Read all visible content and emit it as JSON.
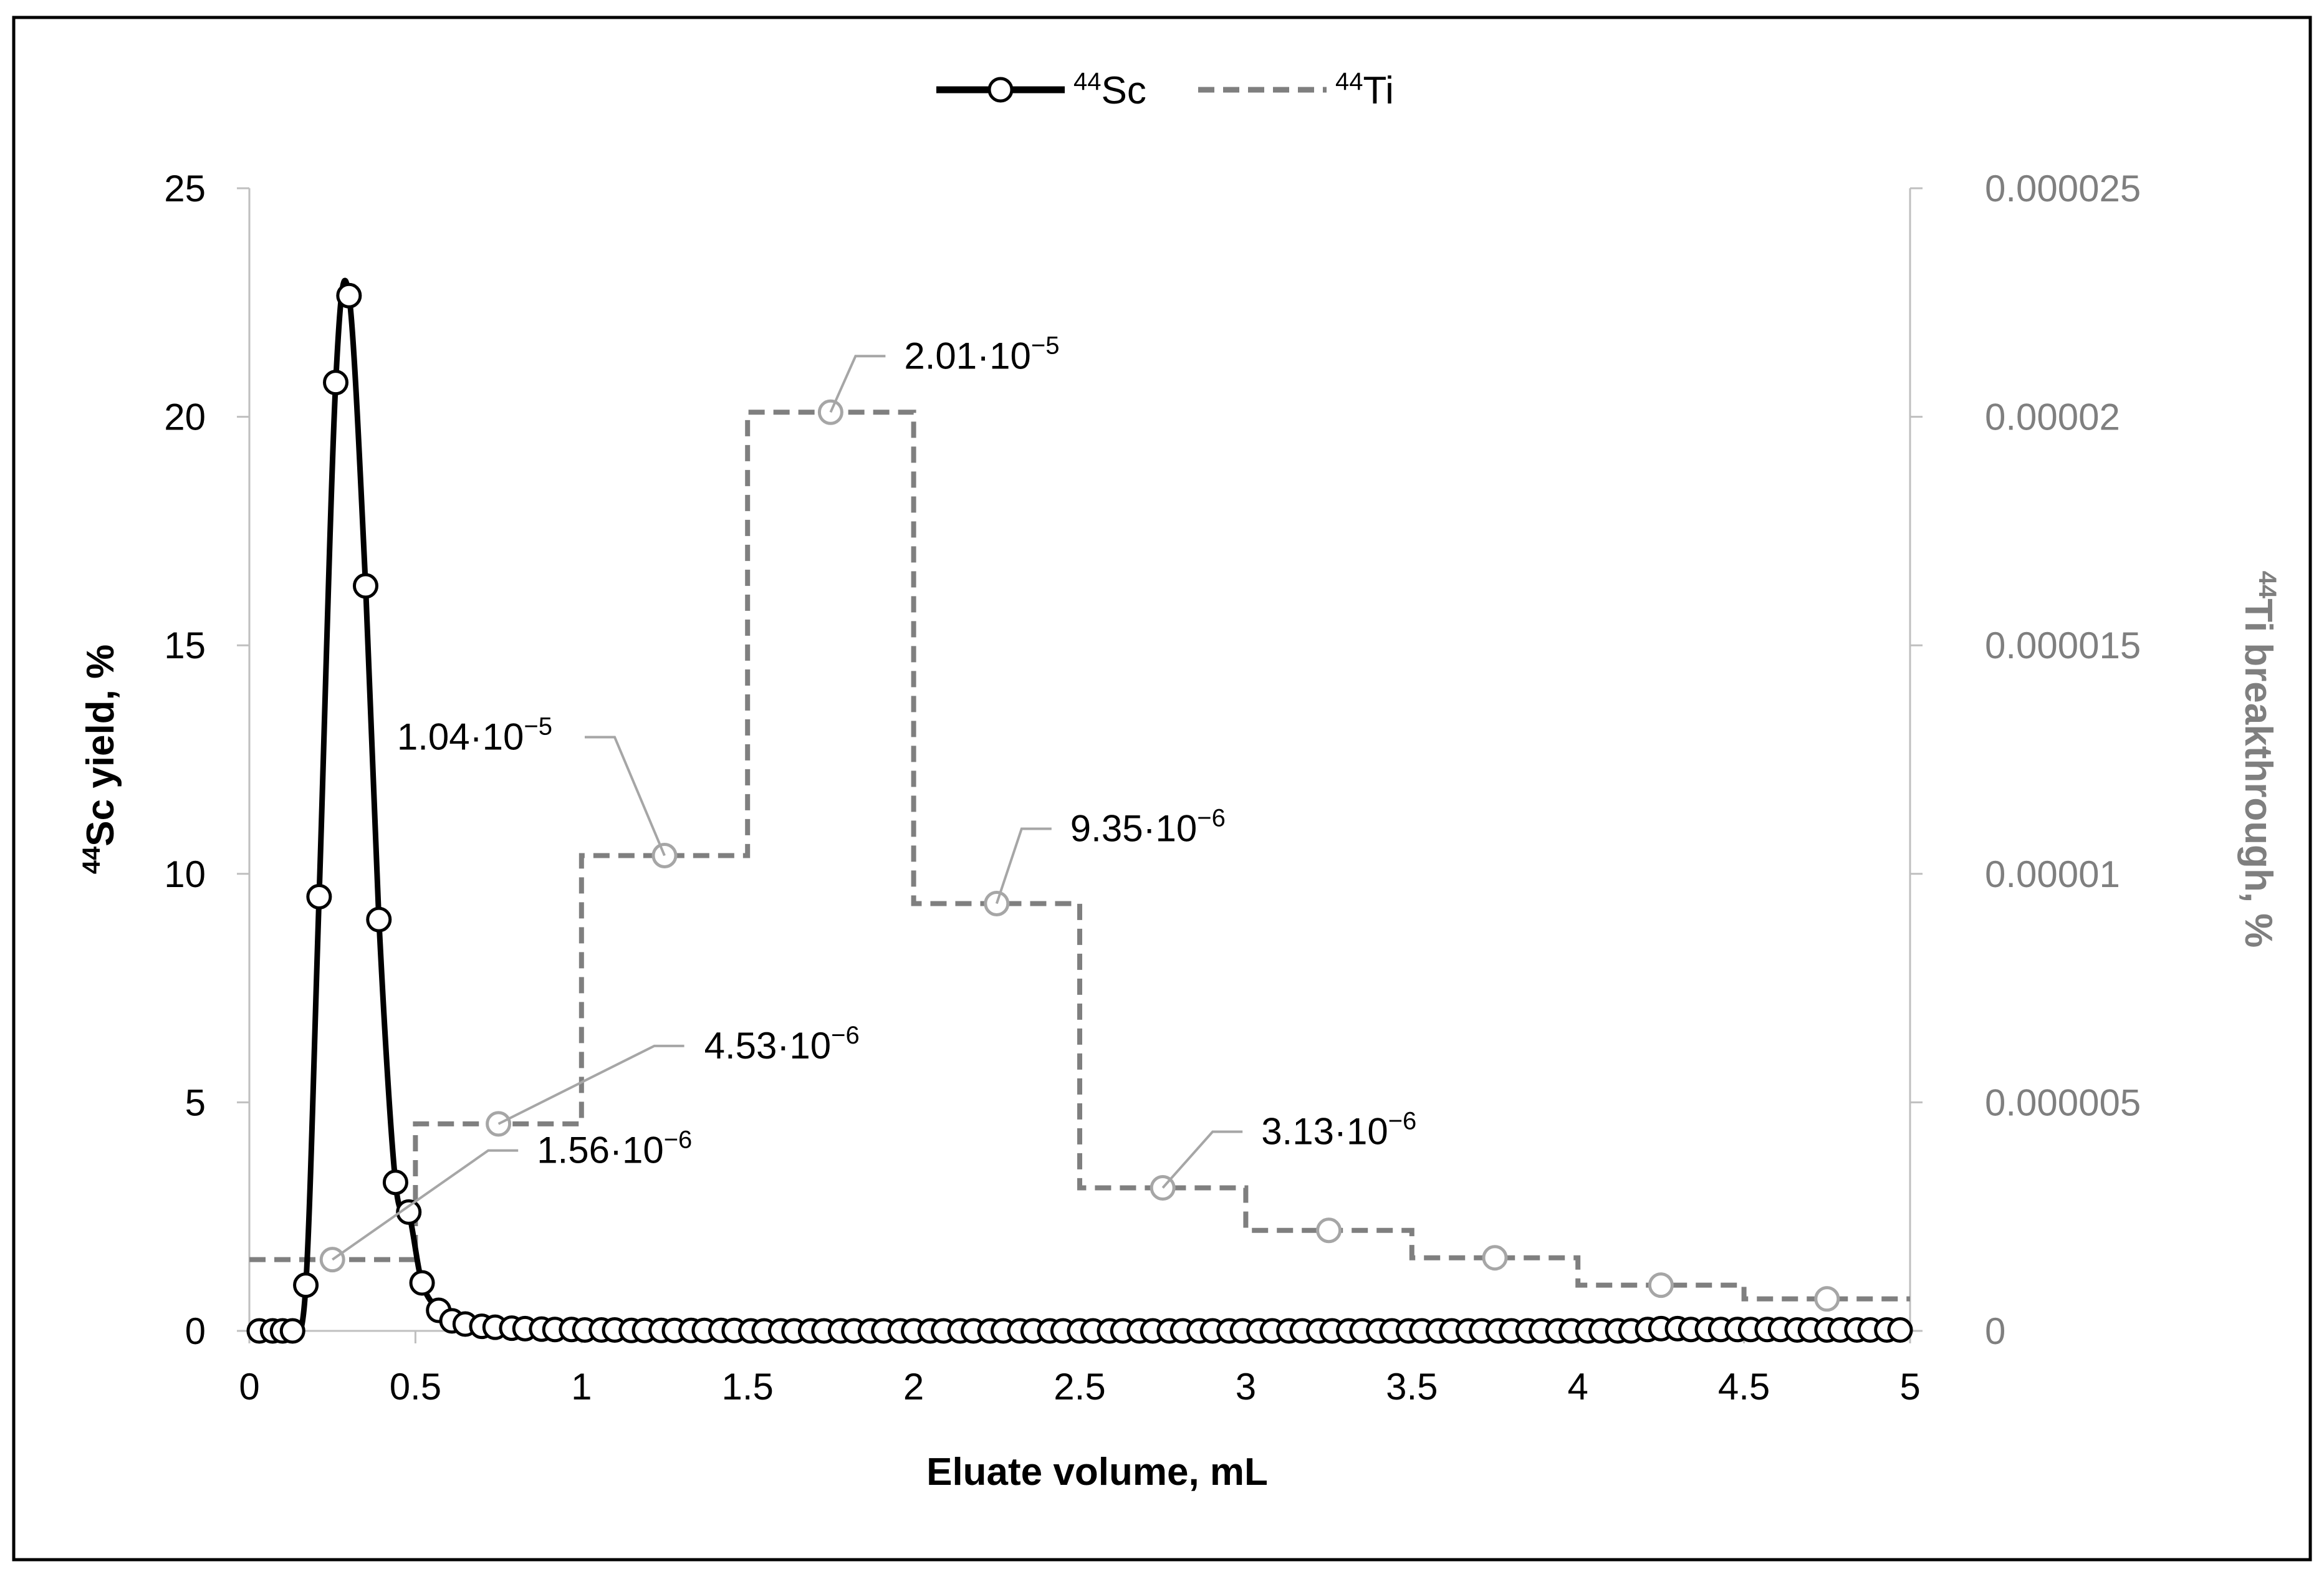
{
  "chart_data": {
    "type": "line",
    "xlabel": "Eluate volume, mL",
    "ylabel_left": {
      "sup": "44",
      "text": "Sc yield, %"
    },
    "ylabel_right": {
      "sup": "44",
      "text": "Ti breakthrough, %"
    },
    "xlim": [
      0,
      5
    ],
    "ylim_left": [
      0,
      25
    ],
    "ylim_right": [
      0,
      2.5e-05
    ],
    "x_ticks": [
      "0",
      "0.5",
      "1",
      "1.5",
      "2",
      "2.5",
      "3",
      "3.5",
      "4",
      "4.5",
      "5"
    ],
    "y_left_ticks": [
      "0",
      "5",
      "10",
      "15",
      "20",
      "25"
    ],
    "y_right_ticks": [
      "0",
      "0.000005",
      "0.00001",
      "0.000015",
      "0.00002",
      "0.000025"
    ],
    "legend_position": "top-center",
    "grid": false,
    "colors": {
      "sc": "#000000",
      "ti": "#7f7f7f",
      "axis": "#bfbfbf",
      "leader": "#a6a6a6"
    },
    "series": [
      {
        "name": "44Sc",
        "legend": {
          "sup": "44",
          "text": "Sc"
        },
        "axis": "left",
        "style": "solid-with-open-circles",
        "points": [
          [
            0.03,
            0
          ],
          [
            0.07,
            0
          ],
          [
            0.1,
            0
          ],
          [
            0.13,
            0
          ],
          [
            0.17,
            1.0
          ],
          [
            0.21,
            9.5
          ],
          [
            0.26,
            20.75
          ],
          [
            0.3,
            22.65
          ],
          [
            0.35,
            16.3
          ],
          [
            0.39,
            9.0
          ],
          [
            0.44,
            3.25
          ],
          [
            0.48,
            2.6
          ],
          [
            0.52,
            1.05
          ],
          [
            0.57,
            0.45
          ],
          [
            0.61,
            0.22
          ],
          [
            0.65,
            0.15
          ],
          [
            0.7,
            0.1
          ],
          [
            0.74,
            0.08
          ],
          [
            0.79,
            0.06
          ],
          [
            0.83,
            0.05
          ],
          [
            0.88,
            0.04
          ],
          [
            0.92,
            0.03
          ],
          [
            0.97,
            0.03
          ],
          [
            1.01,
            0.02
          ],
          [
            1.06,
            0.02
          ],
          [
            1.1,
            0.02
          ],
          [
            1.15,
            0.01
          ],
          [
            1.19,
            0.01
          ],
          [
            1.24,
            0.01
          ],
          [
            1.28,
            0.01
          ],
          [
            1.33,
            0.01
          ],
          [
            1.37,
            0.01
          ],
          [
            1.42,
            0.01
          ],
          [
            1.46,
            0.01
          ],
          [
            1.51,
            0.0
          ],
          [
            1.55,
            0.0
          ],
          [
            1.6,
            0.0
          ],
          [
            1.64,
            0.0
          ],
          [
            1.69,
            0.0
          ],
          [
            1.73,
            0.0
          ],
          [
            1.78,
            0.0
          ],
          [
            1.82,
            0.0
          ],
          [
            1.87,
            0.0
          ],
          [
            1.91,
            0.0
          ],
          [
            1.96,
            0.0
          ],
          [
            2.0,
            0.0
          ],
          [
            2.05,
            0.0
          ],
          [
            2.09,
            0.0
          ],
          [
            2.14,
            0.0
          ],
          [
            2.18,
            0.0
          ],
          [
            2.23,
            0.0
          ],
          [
            2.27,
            0.0
          ],
          [
            2.32,
            0.0
          ],
          [
            2.36,
            0.0
          ],
          [
            2.41,
            0.0
          ],
          [
            2.45,
            0.0
          ],
          [
            2.5,
            0.0
          ],
          [
            2.54,
            0.0
          ],
          [
            2.59,
            0.0
          ],
          [
            2.63,
            0.0
          ],
          [
            2.68,
            0.0
          ],
          [
            2.72,
            0.0
          ],
          [
            2.77,
            0.0
          ],
          [
            2.81,
            0.0
          ],
          [
            2.86,
            0.0
          ],
          [
            2.9,
            0.0
          ],
          [
            2.95,
            0.0
          ],
          [
            2.99,
            0.0
          ],
          [
            3.04,
            0.0
          ],
          [
            3.08,
            0.0
          ],
          [
            3.13,
            0.0
          ],
          [
            3.17,
            0.0
          ],
          [
            3.22,
            0.0
          ],
          [
            3.26,
            0.0
          ],
          [
            3.31,
            0.0
          ],
          [
            3.35,
            0.0
          ],
          [
            3.4,
            0.0
          ],
          [
            3.44,
            0.0
          ],
          [
            3.49,
            0.0
          ],
          [
            3.53,
            0.0
          ],
          [
            3.58,
            0.0
          ],
          [
            3.62,
            0.0
          ],
          [
            3.67,
            0.0
          ],
          [
            3.71,
            0.0
          ],
          [
            3.76,
            0.0
          ],
          [
            3.8,
            0.0
          ],
          [
            3.85,
            0.0
          ],
          [
            3.89,
            0.0
          ],
          [
            3.94,
            0.0
          ],
          [
            3.98,
            0.0
          ],
          [
            4.03,
            0.0
          ],
          [
            4.07,
            0.0
          ],
          [
            4.12,
            0.0
          ],
          [
            4.16,
            0.0
          ],
          [
            4.21,
            0.03
          ],
          [
            4.25,
            0.05
          ],
          [
            4.3,
            0.05
          ],
          [
            4.34,
            0.03
          ],
          [
            4.39,
            0.03
          ],
          [
            4.43,
            0.03
          ],
          [
            4.48,
            0.03
          ],
          [
            4.52,
            0.03
          ],
          [
            4.57,
            0.03
          ],
          [
            4.61,
            0.03
          ],
          [
            4.66,
            0.02
          ],
          [
            4.7,
            0.02
          ],
          [
            4.75,
            0.02
          ],
          [
            4.79,
            0.02
          ],
          [
            4.84,
            0.02
          ],
          [
            4.88,
            0.02
          ],
          [
            4.93,
            0.02
          ],
          [
            4.97,
            0.02
          ]
        ]
      },
      {
        "name": "44Ti",
        "legend": {
          "sup": "44",
          "text": "Ti"
        },
        "axis": "right",
        "style": "dashed-step",
        "steps": [
          {
            "x0": 0,
            "x1": 0.5,
            "value": 1.56e-06
          },
          {
            "x0": 0.5,
            "x1": 1.0,
            "value": 4.53e-06
          },
          {
            "x0": 1.0,
            "x1": 1.5,
            "value": 1.04e-05
          },
          {
            "x0": 1.5,
            "x1": 2.0,
            "value": 2.01e-05
          },
          {
            "x0": 2.0,
            "x1": 2.5,
            "value": 9.35e-06
          },
          {
            "x0": 2.5,
            "x1": 3.0,
            "value": 3.13e-06
          },
          {
            "x0": 3.0,
            "x1": 3.5,
            "value": 2.2e-06
          },
          {
            "x0": 3.5,
            "x1": 4.0,
            "value": 1.6e-06
          },
          {
            "x0": 4.0,
            "x1": 4.5,
            "value": 1e-06
          },
          {
            "x0": 4.5,
            "x1": 5.0,
            "value": 7e-07
          }
        ],
        "markers": [
          [
            0.25,
            1.56e-06
          ],
          [
            0.75,
            4.53e-06
          ],
          [
            1.25,
            1.04e-05
          ],
          [
            1.75,
            2.01e-05
          ],
          [
            2.25,
            9.35e-06
          ],
          [
            2.75,
            3.13e-06
          ],
          [
            3.25,
            2.2e-06
          ],
          [
            3.75,
            1.6e-06
          ],
          [
            4.25,
            1e-06
          ],
          [
            4.75,
            7e-07
          ]
        ]
      }
    ],
    "annotations": [
      {
        "mantissa": "1.56·10",
        "exp": "−6",
        "x": 0.25,
        "y": 1.56e-06
      },
      {
        "mantissa": "4.53·10",
        "exp": "−6",
        "x": 0.75,
        "y": 4.53e-06
      },
      {
        "mantissa": "1.04·10",
        "exp": "−5",
        "x": 1.25,
        "y": 1.04e-05
      },
      {
        "mantissa": "2.01·10",
        "exp": "−5",
        "x": 1.75,
        "y": 2.01e-05
      },
      {
        "mantissa": "9.35·10",
        "exp": "−6",
        "x": 2.25,
        "y": 9.35e-06
      },
      {
        "mantissa": "3.13·10",
        "exp": "−6",
        "x": 2.75,
        "y": 3.13e-06
      }
    ]
  }
}
